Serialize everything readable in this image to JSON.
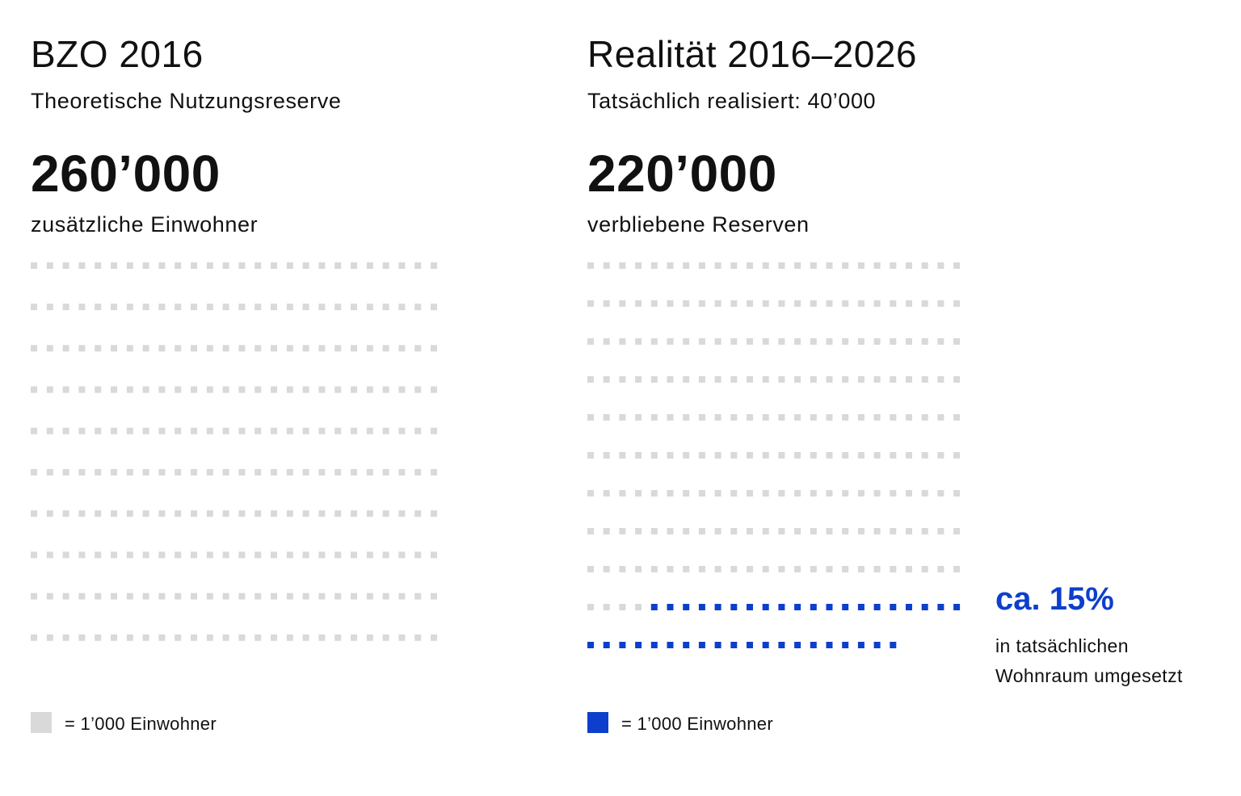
{
  "colors": {
    "reserve": "#d9d9d9",
    "realized": "#0d3fcc",
    "text": "#111111"
  },
  "left": {
    "title": "BZO 2016",
    "subtitle": "Theoretische Nutzungsreserve",
    "value": "260’000",
    "value_label": "zusätzliche Einwohner",
    "legend_label": "= 1’000 Einwohner"
  },
  "right": {
    "title": "Realität 2016–2026",
    "subtitle": "Tatsächlich realisiert: 40’000",
    "value": "220’000",
    "value_label": "verbliebene Reserven",
    "legend_label": "= 1’000 Einwohner",
    "share": "ca. 15%",
    "share_note_1": "in tatsächlichen",
    "share_note_2": "Wohnraum umgesetzt"
  },
  "chart_data": [
    {
      "type": "waffle",
      "title": "BZO 2016",
      "unit": "1’000 Einwohner",
      "columns": 26,
      "series": [
        {
          "name": "Theoretische Nutzungsreserve",
          "value": 260,
          "color": "#d9d9d9"
        }
      ]
    },
    {
      "type": "waffle",
      "title": "Realität 2016–2026",
      "unit": "1’000 Einwohner",
      "columns": 24,
      "series": [
        {
          "name": "verbliebene Reserven",
          "value": 220,
          "color": "#d9d9d9"
        },
        {
          "name": "Tatsächlich realisiert",
          "value": 40,
          "color": "#0d3fcc"
        }
      ]
    }
  ]
}
